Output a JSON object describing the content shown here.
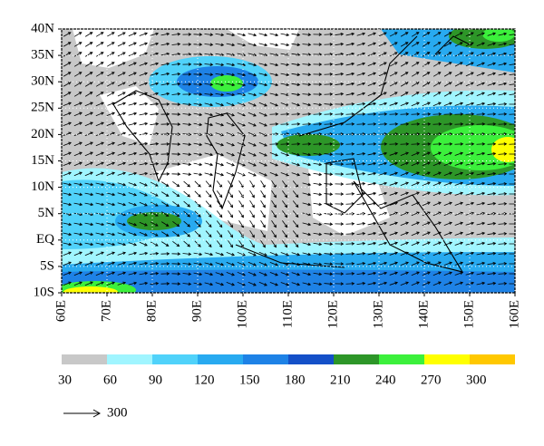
{
  "chart_data": {
    "type": "map",
    "xlim": [
      60,
      160
    ],
    "ylim": [
      -10,
      40
    ],
    "xticks": [
      {
        "value": 60,
        "label": "60E"
      },
      {
        "value": 70,
        "label": "70E"
      },
      {
        "value": 80,
        "label": "80E"
      },
      {
        "value": 90,
        "label": "90E"
      },
      {
        "value": 100,
        "label": "100E"
      },
      {
        "value": 110,
        "label": "110E"
      },
      {
        "value": 120,
        "label": "120E"
      },
      {
        "value": 130,
        "label": "130E"
      },
      {
        "value": 140,
        "label": "140E"
      },
      {
        "value": 150,
        "label": "150E"
      },
      {
        "value": 160,
        "label": "160E"
      }
    ],
    "yticks": [
      {
        "value": 40,
        "label": "40N"
      },
      {
        "value": 35,
        "label": "35N"
      },
      {
        "value": 30,
        "label": "30N"
      },
      {
        "value": 25,
        "label": "25N"
      },
      {
        "value": 20,
        "label": "20N"
      },
      {
        "value": 15,
        "label": "15N"
      },
      {
        "value": 10,
        "label": "10N"
      },
      {
        "value": 5,
        "label": "5N"
      },
      {
        "value": 0,
        "label": "EQ"
      },
      {
        "value": -5,
        "label": "5S"
      },
      {
        "value": -10,
        "label": "10S"
      }
    ],
    "grid": true,
    "colorbar": {
      "levels": [
        30,
        60,
        90,
        120,
        150,
        180,
        210,
        240,
        270,
        300
      ],
      "colors": [
        "#c8c8c8",
        "#a0f5ff",
        "#50d2fa",
        "#28aaf0",
        "#1e82e6",
        "#1450c8",
        "#2d9628",
        "#3cf03c",
        "#ffff00",
        "#ffc800",
        "#ff9600"
      ]
    },
    "reference_vector": 300
  }
}
